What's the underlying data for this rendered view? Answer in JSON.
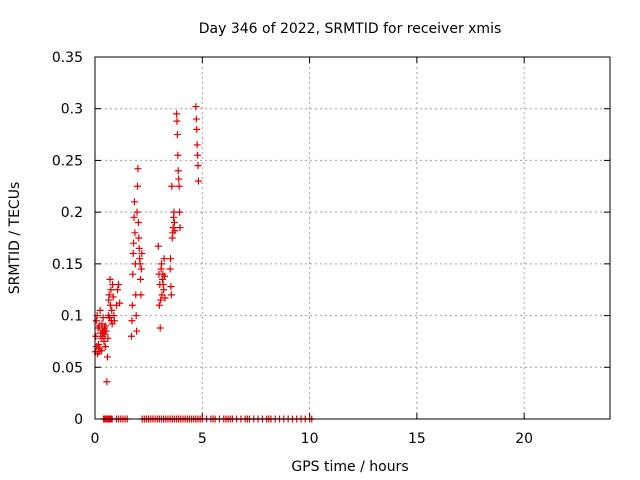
{
  "chart_data": {
    "type": "scatter",
    "title": "Day 346 of 2022, SRMTID for receiver xmis",
    "xlabel": "GPS time / hours",
    "ylabel": "SRMTID / TECUs",
    "xlim": [
      0,
      24
    ],
    "ylim": [
      0,
      0.35
    ],
    "xticks": [
      0,
      5,
      10,
      15,
      20
    ],
    "xtick_labels": [
      "0",
      "5",
      "10",
      "15",
      "20"
    ],
    "yticks": [
      0,
      0.05,
      0.1,
      0.15,
      0.2,
      0.25,
      0.3,
      0.35
    ],
    "ytick_labels": [
      "0",
      "0.05",
      "0.1",
      "0.15",
      "0.2",
      "0.25",
      "0.3",
      "0.35"
    ],
    "grid": true,
    "marker": "+",
    "color": "#e00000",
    "series": [
      {
        "name": "SRMTID",
        "points": [
          [
            0.02,
            0.065
          ],
          [
            0.04,
            0.08
          ],
          [
            0.06,
            0.095
          ],
          [
            0.08,
            0.07
          ],
          [
            0.1,
            0.1
          ],
          [
            0.12,
            0.063
          ],
          [
            0.14,
            0.088
          ],
          [
            0.16,
            0.072
          ],
          [
            0.18,
            0.065
          ],
          [
            0.2,
            0.09
          ],
          [
            0.22,
            0.068
          ],
          [
            0.24,
            0.105
          ],
          [
            0.26,
            0.083
          ],
          [
            0.28,
            0.078
          ],
          [
            0.3,
            0.066
          ],
          [
            0.32,
            0.092
          ],
          [
            0.34,
            0.086
          ],
          [
            0.36,
            0.08
          ],
          [
            0.38,
            0.098
          ],
          [
            0.4,
            0.084
          ],
          [
            0.42,
            0.075
          ],
          [
            0.44,
            0.088
          ],
          [
            0.46,
            0.082
          ],
          [
            0.48,
            0.07
          ],
          [
            0.5,
            0.09
          ],
          [
            0.52,
            0.085
          ],
          [
            0.55,
            0.036
          ],
          [
            0.58,
            0.06
          ],
          [
            0.6,
            0.078
          ],
          [
            0.62,
            0.1
          ],
          [
            0.64,
            0.115
          ],
          [
            0.66,
            0.12
          ],
          [
            0.68,
            0.098
          ],
          [
            0.7,
            0.135
          ],
          [
            0.72,
            0.11
          ],
          [
            0.74,
            0.125
          ],
          [
            0.76,
            0.095
          ],
          [
            0.78,
            0.105
          ],
          [
            0.8,
            0.092
          ],
          [
            0.82,
            0.13
          ],
          [
            0.85,
            0.118
          ],
          [
            0.88,
            0.1
          ],
          [
            0.9,
            0.095
          ],
          [
            1.0,
            0.11
          ],
          [
            1.05,
            0.125
          ],
          [
            1.1,
            0.13
          ],
          [
            1.15,
            0.112
          ],
          [
            1.7,
            0.08
          ],
          [
            1.72,
            0.095
          ],
          [
            1.74,
            0.11
          ],
          [
            1.76,
            0.14
          ],
          [
            1.78,
            0.16
          ],
          [
            1.8,
            0.17
          ],
          [
            1.82,
            0.195
          ],
          [
            1.84,
            0.21
          ],
          [
            1.86,
            0.18
          ],
          [
            1.88,
            0.15
          ],
          [
            1.9,
            0.12
          ],
          [
            1.92,
            0.1
          ],
          [
            1.94,
            0.085
          ],
          [
            1.96,
            0.2
          ],
          [
            1.98,
            0.225
          ],
          [
            2.0,
            0.242
          ],
          [
            2.02,
            0.19
          ],
          [
            2.04,
            0.175
          ],
          [
            2.06,
            0.165
          ],
          [
            2.08,
            0.155
          ],
          [
            2.1,
            0.15
          ],
          [
            2.12,
            0.135
          ],
          [
            2.14,
            0.12
          ],
          [
            2.16,
            0.145
          ],
          [
            2.18,
            0.16
          ],
          [
            2.95,
            0.167
          ],
          [
            2.98,
            0.14
          ],
          [
            3.0,
            0.11
          ],
          [
            3.02,
            0.13
          ],
          [
            3.04,
            0.088
          ],
          [
            3.06,
            0.115
          ],
          [
            3.08,
            0.145
          ],
          [
            3.1,
            0.15
          ],
          [
            3.12,
            0.12
          ],
          [
            3.14,
            0.135
          ],
          [
            3.16,
            0.14
          ],
          [
            3.18,
            0.13
          ],
          [
            3.2,
            0.125
          ],
          [
            3.22,
            0.155
          ],
          [
            3.24,
            0.138
          ],
          [
            3.26,
            0.117
          ],
          [
            3.5,
            0.145
          ],
          [
            3.52,
            0.155
          ],
          [
            3.54,
            0.128
          ],
          [
            3.56,
            0.12
          ],
          [
            3.58,
            0.225
          ],
          [
            3.6,
            0.175
          ],
          [
            3.62,
            0.18
          ],
          [
            3.64,
            0.185
          ],
          [
            3.66,
            0.195
          ],
          [
            3.68,
            0.2
          ],
          [
            3.7,
            0.19
          ],
          [
            3.72,
            0.182
          ],
          [
            3.8,
            0.295
          ],
          [
            3.82,
            0.288
          ],
          [
            3.84,
            0.275
          ],
          [
            3.86,
            0.255
          ],
          [
            3.88,
            0.24
          ],
          [
            3.9,
            0.232
          ],
          [
            3.92,
            0.225
          ],
          [
            3.94,
            0.2
          ],
          [
            3.96,
            0.185
          ],
          [
            4.7,
            0.302
          ],
          [
            4.72,
            0.29
          ],
          [
            4.74,
            0.28
          ],
          [
            4.76,
            0.265
          ],
          [
            4.78,
            0.255
          ],
          [
            4.8,
            0.245
          ],
          [
            4.82,
            0.23
          ]
        ],
        "zero_x": [
          0.4,
          0.45,
          0.5,
          0.55,
          0.6,
          0.65,
          0.7,
          0.75,
          0.8,
          1.0,
          1.1,
          1.2,
          1.3,
          1.4,
          1.5,
          2.2,
          2.3,
          2.4,
          2.5,
          2.6,
          2.7,
          2.8,
          2.9,
          3.0,
          3.1,
          3.2,
          3.3,
          3.4,
          3.5,
          3.6,
          3.7,
          3.8,
          3.9,
          4.0,
          4.1,
          4.2,
          4.3,
          4.4,
          4.5,
          4.6,
          4.7,
          4.8,
          4.9,
          5.0,
          5.2,
          5.4,
          5.5,
          5.6,
          5.8,
          6.0,
          6.1,
          6.2,
          6.3,
          6.4,
          6.6,
          6.8,
          7.0,
          7.1,
          7.2,
          7.4,
          7.6,
          7.8,
          8.0,
          8.1,
          8.2,
          8.4,
          8.6,
          8.8,
          9.0,
          9.2,
          9.4,
          9.6,
          9.8,
          10.0,
          10.1
        ]
      }
    ]
  }
}
